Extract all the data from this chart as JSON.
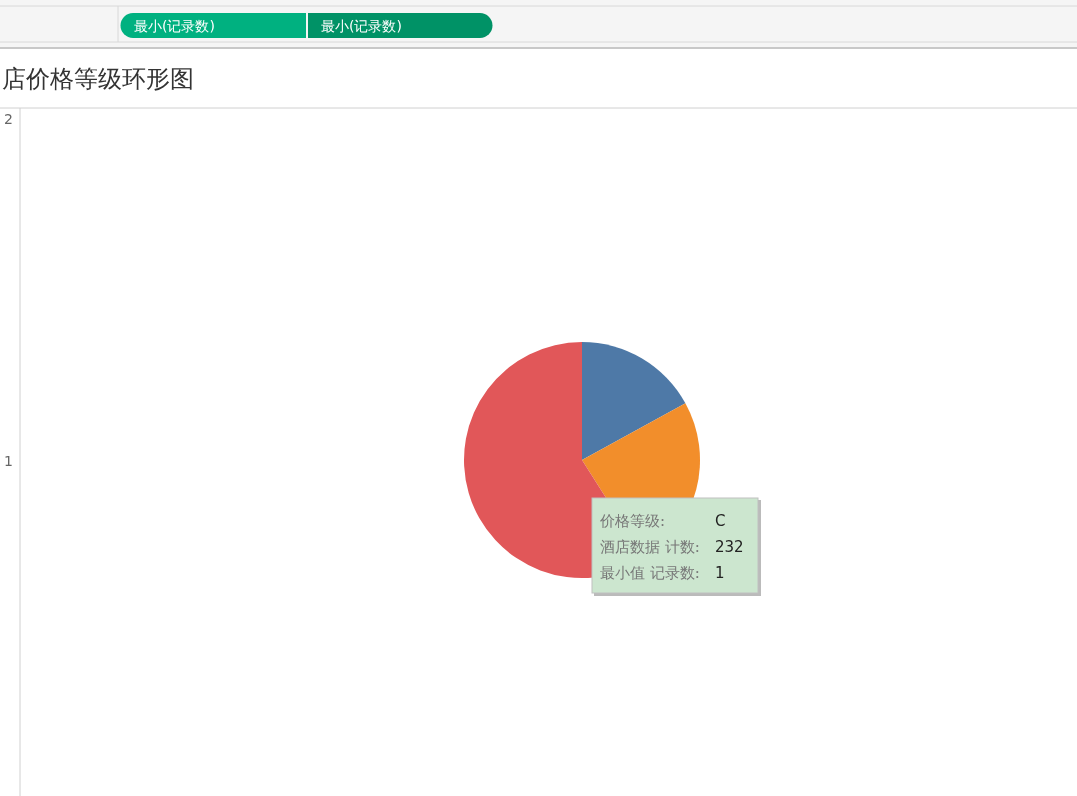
{
  "chart_data": {
    "type": "pie",
    "title": "店价格等级环形图",
    "categories": [
      null,
      null,
      null
    ],
    "values": [
      17,
      24,
      59
    ],
    "colors": [
      "#4e79a7",
      "#f28e2b",
      "#e15759"
    ],
    "annotations": [
      "最小(记录数)",
      "最小(记录数)",
      "价格等级:",
      "C",
      "酒店数据 计数:",
      "232",
      "最小值 记录数:",
      "1",
      "2",
      "1"
    ]
  }
}
